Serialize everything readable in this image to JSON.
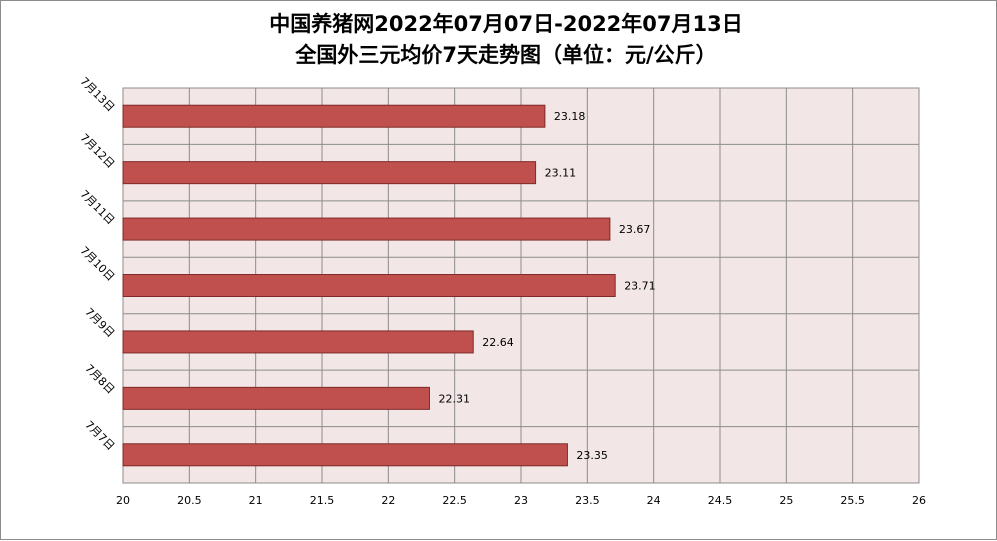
{
  "chart_data": {
    "type": "bar",
    "orientation": "horizontal",
    "title": "中国养猪网2022年07月07日-2022年07月13日",
    "subtitle": "全国外三元均价7天走势图（单位：元/公斤）",
    "categories": [
      "7月13日",
      "7月12日",
      "7月11日",
      "7月10日",
      "7月9日",
      "7月8日",
      "7月7日"
    ],
    "values": [
      23.18,
      23.11,
      23.67,
      23.71,
      22.64,
      22.31,
      23.35
    ],
    "value_labels": [
      "23.18",
      "23.11",
      "23.67",
      "23.71",
      "22.64",
      "22.31",
      "23.35"
    ],
    "xlim": [
      20,
      26
    ],
    "xticks": [
      "20",
      "20.5",
      "21",
      "21.5",
      "22",
      "22.5",
      "23",
      "23.5",
      "24",
      "24.5",
      "25",
      "25.5",
      "26"
    ],
    "grid": true,
    "legend": "none",
    "colors": {
      "bar": "#c0504d",
      "bar_edge": "#7f2a28",
      "plot_bg": "#f2e6e6",
      "grid": "#8c8c8c"
    }
  }
}
